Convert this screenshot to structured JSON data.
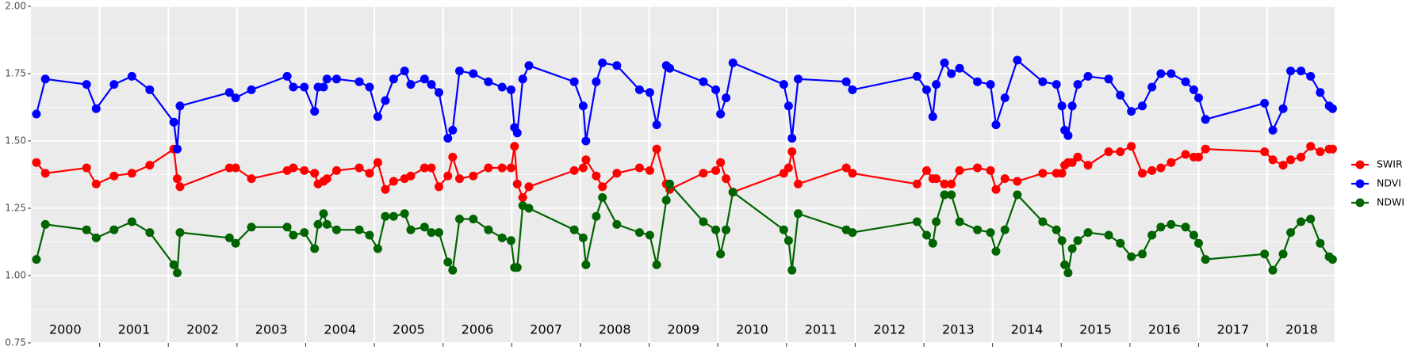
{
  "chart_data": {
    "type": "line",
    "x": [
      2000.08,
      2000.21,
      2000.81,
      2000.95,
      2001.21,
      2001.47,
      2001.73,
      2002.08,
      2002.13,
      2002.17,
      2002.89,
      2002.98,
      2003.21,
      2003.73,
      2003.82,
      2003.98,
      2004.13,
      2004.18,
      2004.26,
      2004.31,
      2004.45,
      2004.78,
      2004.93,
      2005.05,
      2005.16,
      2005.28,
      2005.44,
      2005.53,
      2005.73,
      2005.83,
      2005.94,
      2006.07,
      2006.14,
      2006.24,
      2006.44,
      2006.66,
      2006.86,
      2006.99,
      2007.04,
      2007.08,
      2007.16,
      2007.25,
      2007.91,
      2008.04,
      2008.08,
      2008.23,
      2008.32,
      2008.53,
      2008.86,
      2009.01,
      2009.11,
      2009.25,
      2009.3,
      2009.79,
      2009.97,
      2010.04,
      2010.12,
      2010.22,
      2010.96,
      2011.03,
      2011.08,
      2011.17,
      2011.87,
      2011.96,
      2012.9,
      2013.04,
      2013.13,
      2013.18,
      2013.3,
      2013.4,
      2013.52,
      2013.78,
      2013.97,
      2014.05,
      2014.18,
      2014.36,
      2014.73,
      2014.93,
      2015.01,
      2015.05,
      2015.1,
      2015.16,
      2015.24,
      2015.39,
      2015.69,
      2015.86,
      2016.02,
      2016.18,
      2016.32,
      2016.45,
      2016.6,
      2016.81,
      2016.93,
      2017.0,
      2017.1,
      2017.96,
      2018.08,
      2018.23,
      2018.34,
      2018.49,
      2018.63,
      2018.77,
      2018.9,
      2018.95
    ],
    "series": [
      {
        "name": "SWIR",
        "color": "#ff0000",
        "values": [
          1.42,
          1.38,
          1.4,
          1.34,
          1.37,
          1.38,
          1.41,
          1.47,
          1.36,
          1.33,
          1.4,
          1.4,
          1.36,
          1.39,
          1.4,
          1.39,
          1.38,
          1.34,
          1.35,
          1.36,
          1.39,
          1.4,
          1.38,
          1.42,
          1.32,
          1.35,
          1.36,
          1.37,
          1.4,
          1.4,
          1.33,
          1.37,
          1.44,
          1.36,
          1.37,
          1.4,
          1.4,
          1.4,
          1.48,
          1.34,
          1.29,
          1.33,
          1.39,
          1.4,
          1.43,
          1.37,
          1.33,
          1.38,
          1.4,
          1.39,
          1.47,
          1.34,
          1.32,
          1.38,
          1.39,
          1.42,
          1.36,
          1.31,
          1.38,
          1.4,
          1.46,
          1.34,
          1.4,
          1.38,
          1.34,
          1.39,
          1.36,
          1.36,
          1.34,
          1.34,
          1.39,
          1.4,
          1.39,
          1.32,
          1.36,
          1.35,
          1.38,
          1.38,
          1.38,
          1.41,
          1.42,
          1.42,
          1.44,
          1.41,
          1.46,
          1.46,
          1.48,
          1.38,
          1.39,
          1.4,
          1.42,
          1.45,
          1.44,
          1.44,
          1.47,
          1.46,
          1.43,
          1.41,
          1.43,
          1.44,
          1.48,
          1.46,
          1.47,
          1.47
        ]
      },
      {
        "name": "NDVI",
        "color": "#0000ff",
        "values": [
          1.6,
          1.73,
          1.71,
          1.62,
          1.71,
          1.74,
          1.69,
          1.57,
          1.47,
          1.63,
          1.68,
          1.66,
          1.69,
          1.74,
          1.7,
          1.7,
          1.61,
          1.7,
          1.7,
          1.73,
          1.73,
          1.72,
          1.7,
          1.59,
          1.65,
          1.73,
          1.76,
          1.71,
          1.73,
          1.71,
          1.68,
          1.51,
          1.54,
          1.76,
          1.75,
          1.72,
          1.7,
          1.69,
          1.55,
          1.53,
          1.73,
          1.78,
          1.72,
          1.63,
          1.5,
          1.72,
          1.79,
          1.78,
          1.69,
          1.68,
          1.56,
          1.78,
          1.77,
          1.72,
          1.69,
          1.6,
          1.66,
          1.79,
          1.71,
          1.63,
          1.51,
          1.73,
          1.72,
          1.69,
          1.74,
          1.69,
          1.59,
          1.71,
          1.79,
          1.75,
          1.77,
          1.72,
          1.71,
          1.56,
          1.66,
          1.8,
          1.72,
          1.71,
          1.63,
          1.54,
          1.52,
          1.63,
          1.71,
          1.74,
          1.73,
          1.67,
          1.61,
          1.63,
          1.7,
          1.75,
          1.75,
          1.72,
          1.69,
          1.66,
          1.58,
          1.64,
          1.54,
          1.62,
          1.76,
          1.76,
          1.74,
          1.68,
          1.63,
          1.62
        ]
      },
      {
        "name": "NDWI",
        "color": "#006400",
        "values": [
          1.06,
          1.19,
          1.17,
          1.14,
          1.17,
          1.2,
          1.16,
          1.04,
          1.01,
          1.16,
          1.14,
          1.12,
          1.18,
          1.18,
          1.15,
          1.16,
          1.1,
          1.19,
          1.23,
          1.19,
          1.17,
          1.17,
          1.15,
          1.1,
          1.22,
          1.22,
          1.23,
          1.17,
          1.18,
          1.16,
          1.16,
          1.05,
          1.02,
          1.21,
          1.21,
          1.17,
          1.14,
          1.13,
          1.03,
          1.03,
          1.26,
          1.25,
          1.17,
          1.14,
          1.04,
          1.22,
          1.29,
          1.19,
          1.16,
          1.15,
          1.04,
          1.28,
          1.34,
          1.2,
          1.17,
          1.08,
          1.17,
          1.31,
          1.17,
          1.13,
          1.02,
          1.23,
          1.17,
          1.16,
          1.2,
          1.15,
          1.12,
          1.2,
          1.3,
          1.3,
          1.2,
          1.17,
          1.16,
          1.09,
          1.17,
          1.3,
          1.2,
          1.17,
          1.13,
          1.04,
          1.01,
          1.1,
          1.13,
          1.16,
          1.15,
          1.12,
          1.07,
          1.08,
          1.15,
          1.18,
          1.19,
          1.18,
          1.15,
          1.12,
          1.06,
          1.08,
          1.02,
          1.08,
          1.16,
          1.2,
          1.21,
          1.12,
          1.07,
          1.06
        ]
      }
    ],
    "year_labels": [
      "2000",
      "2001",
      "2002",
      "2003",
      "2004",
      "2005",
      "2006",
      "2007",
      "2008",
      "2009",
      "2010",
      "2011",
      "2012",
      "2013",
      "2014",
      "2015",
      "2016",
      "2017",
      "2018"
    ],
    "xlim": [
      2000,
      2018.98
    ],
    "xticks": [
      2001,
      2002,
      2003,
      2004,
      2005,
      2006,
      2007,
      2008,
      2009,
      2010,
      2011,
      2012,
      2013,
      2014,
      2015,
      2016,
      2017,
      2018
    ],
    "ylim": [
      0.75,
      2.0
    ],
    "yticks": [
      0.75,
      {
        "value": 1,
        "label": "1.00"
      },
      1.25,
      {
        "value": 1.5,
        "label": "1.50"
      },
      1.75,
      {
        "value": 2,
        "label": "2.00"
      }
    ],
    "grid": true,
    "legend": "right"
  }
}
